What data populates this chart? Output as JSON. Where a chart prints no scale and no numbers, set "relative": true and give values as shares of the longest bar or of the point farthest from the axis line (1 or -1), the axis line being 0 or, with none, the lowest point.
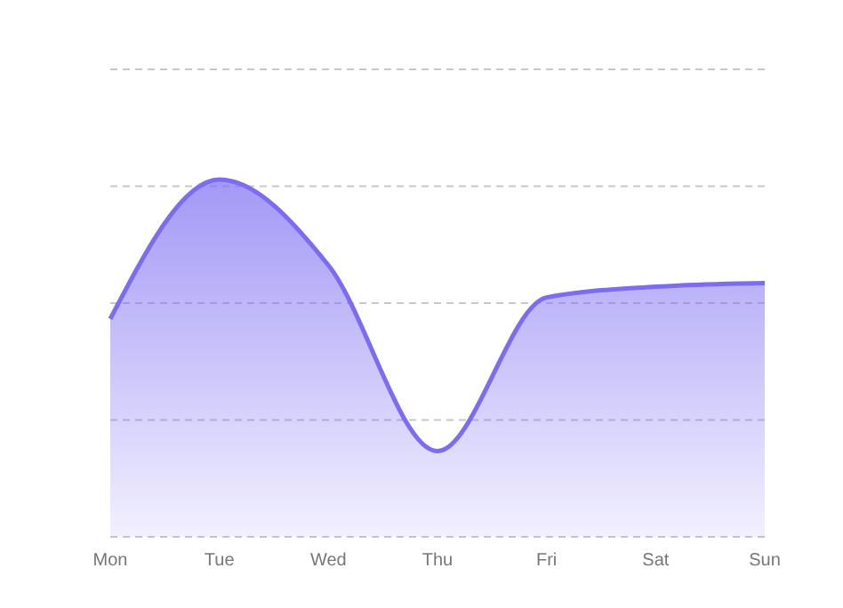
{
  "chart_data": {
    "type": "area",
    "relative": true,
    "categories": [
      "Mon",
      "Tue",
      "Wed",
      "Thu",
      "Fri",
      "Sat",
      "Sun"
    ],
    "series": [
      {
        "color": "#7c6cf2",
        "values": [
          0.61,
          1,
          0.76,
          0.24,
          0.67,
          0.7,
          0.71
        ]
      }
    ],
    "grid": "y",
    "tick_labels": "x"
  }
}
